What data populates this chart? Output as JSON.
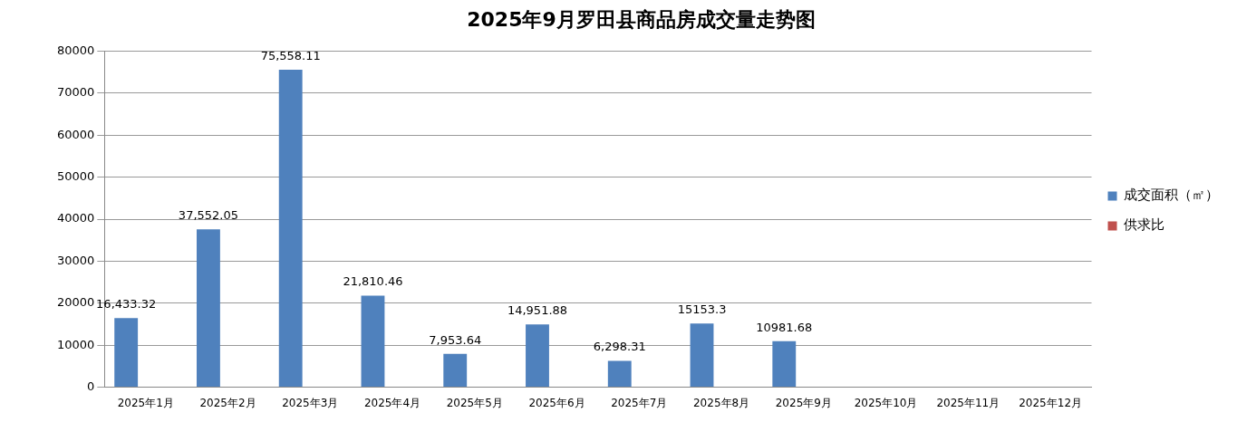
{
  "chart_data": {
    "type": "bar",
    "title": "2025年9月罗田县商品房成交量走势图",
    "categories": [
      "2025年1月",
      "2025年2月",
      "2025年3月",
      "2025年4月",
      "2025年5月",
      "2025年6月",
      "2025年7月",
      "2025年8月",
      "2025年9月",
      "2025年10月",
      "2025年11月",
      "2025年12月"
    ],
    "series": [
      {
        "name": "成交面积（㎡）",
        "color": "#4f81bd",
        "values": [
          16433.32,
          37552.05,
          75558.11,
          21810.46,
          7953.64,
          14951.88,
          6298.31,
          15153.3,
          10981.68,
          null,
          null,
          null
        ],
        "value_labels": [
          "16,433.32",
          "37,552.05",
          "75,558.11",
          "21,810.46",
          "7,953.64",
          "14,951.88",
          "6,298.31",
          "15153.3",
          "10981.68",
          null,
          null,
          null
        ]
      },
      {
        "name": "供求比",
        "color": "#c0504d",
        "values": [
          null,
          null,
          null,
          null,
          null,
          null,
          null,
          null,
          null,
          null,
          null,
          null
        ]
      }
    ],
    "ylim": [
      0,
      80000
    ],
    "yticks": [
      0,
      10000,
      20000,
      30000,
      40000,
      50000,
      60000,
      70000,
      80000
    ],
    "grid": "y",
    "legend": "right"
  }
}
